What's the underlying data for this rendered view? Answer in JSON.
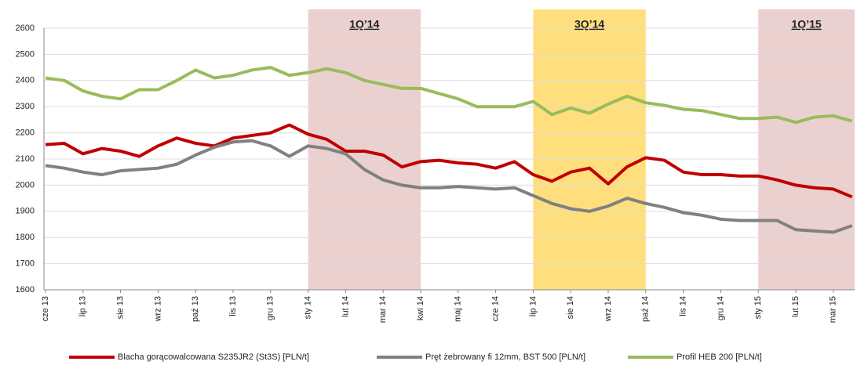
{
  "chart_data": {
    "type": "line",
    "categories": [
      "cze 13",
      null,
      "lip 13",
      null,
      "sie 13",
      null,
      "wrz 13",
      null,
      "paź 13",
      null,
      "lis 13",
      null,
      "gru 13",
      null,
      "sty 14",
      null,
      "lut 14",
      null,
      "mar 14",
      null,
      "kwi 14",
      null,
      "maj 14",
      null,
      "cze 14",
      null,
      "lip 14",
      null,
      "sie 14",
      null,
      "wrz 14",
      null,
      "paź 14",
      null,
      "lis 14",
      null,
      "gru 14",
      null,
      "sty 15",
      null,
      "lut 15",
      null,
      "mar 15",
      null
    ],
    "series": [
      {
        "name": "Blacha gorącowalcowana S235JR2 (St3S) [PLN/t]",
        "color": "#c00000",
        "values": [
          2155,
          2160,
          2120,
          2140,
          2130,
          2110,
          2150,
          2180,
          2160,
          2150,
          2180,
          2190,
          2200,
          2230,
          2195,
          2175,
          2130,
          2130,
          2115,
          2070,
          2090,
          2095,
          2085,
          2080,
          2065,
          2090,
          2040,
          2015,
          2050,
          2065,
          2005,
          2070,
          2105,
          2095,
          2050,
          2040,
          2040,
          2035,
          2035,
          2020,
          2000,
          1990,
          1985,
          1955
        ]
      },
      {
        "name": "Pręt żebrowany fi 12mm, BST 500 [PLN/t]",
        "color": "#808080",
        "values": [
          2075,
          2065,
          2050,
          2040,
          2055,
          2060,
          2065,
          2080,
          2115,
          2145,
          2165,
          2170,
          2150,
          2110,
          2150,
          2140,
          2120,
          2060,
          2020,
          2000,
          1990,
          1990,
          1995,
          1990,
          1985,
          1990,
          1960,
          1930,
          1910,
          1900,
          1920,
          1950,
          1930,
          1915,
          1895,
          1885,
          1870,
          1865,
          1865,
          1865,
          1830,
          1825,
          1820,
          1845
        ]
      },
      {
        "name": "Profil HEB 200 [PLN/t]",
        "color": "#9bbb59",
        "values": [
          2410,
          2400,
          2360,
          2340,
          2330,
          2365,
          2365,
          2400,
          2440,
          2410,
          2420,
          2440,
          2450,
          2420,
          2430,
          2445,
          2430,
          2400,
          2385,
          2370,
          2370,
          2350,
          2330,
          2300,
          2300,
          2300,
          2320,
          2270,
          2295,
          2275,
          2310,
          2340,
          2315,
          2305,
          2290,
          2285,
          2270,
          2255,
          2255,
          2260,
          2240,
          2260,
          2265,
          2245
        ]
      }
    ],
    "bands": [
      {
        "label": "1Q’14",
        "from": "sty 14",
        "to": "kwi 14",
        "color": "#e8c8c8"
      },
      {
        "label": "3Q’14",
        "from": "lip 14",
        "to": "paź 14",
        "color": "#ffd966"
      },
      {
        "label": "1Q’15",
        "from": "sty 15",
        "color": "#e8c8c8"
      }
    ],
    "ylim": [
      1600,
      2600
    ],
    "yticks": [
      1600,
      1700,
      1800,
      1900,
      2000,
      2100,
      2200,
      2300,
      2400,
      2500,
      2600
    ],
    "grid": true,
    "legend": "bottom"
  }
}
